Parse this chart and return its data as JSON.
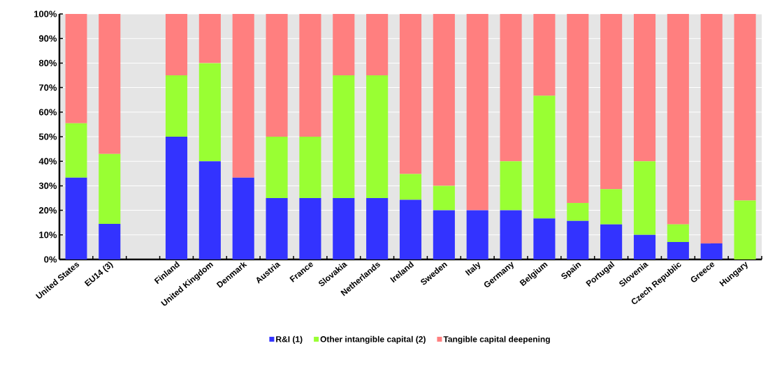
{
  "chart_data": {
    "type": "bar",
    "stacked": true,
    "categories": [
      "United States",
      "EU14 (3)",
      null,
      "Finland",
      "United Kingdom",
      "Denmark",
      "Austria",
      "France",
      "Slovakia",
      "Netherlands",
      "Ireland",
      "Sweden",
      "Italy",
      "Germany",
      "Belgium",
      "Spain",
      "Portugal",
      "Slovenia",
      "Czech Republic",
      "Greece",
      "Hungary"
    ],
    "series": [
      {
        "name": "R&I (1)",
        "color": "#3333ff",
        "values": [
          33.3,
          14.5,
          null,
          50,
          40,
          33.3,
          25,
          25,
          25,
          25,
          24.3,
          20,
          20,
          20,
          16.7,
          15.7,
          14.3,
          10,
          7.1,
          6.5,
          0
        ]
      },
      {
        "name": "Other intangible capital (2)",
        "color": "#99ff33",
        "values": [
          22.2,
          28.5,
          null,
          25,
          40,
          0,
          25,
          25,
          50,
          50,
          10.5,
          10,
          0,
          20,
          50,
          7.3,
          14.3,
          30,
          7.2,
          0,
          24
        ]
      },
      {
        "name": "Tangible capital deepening",
        "color": "#ff7f7f",
        "values": [
          44.5,
          57,
          null,
          25,
          20,
          66.7,
          50,
          50,
          25,
          25,
          65.2,
          70,
          80,
          60,
          33.3,
          77,
          71.4,
          60,
          85.7,
          93.5,
          76
        ]
      }
    ],
    "ylim": [
      0,
      100
    ],
    "yticks": [
      {
        "value": 0,
        "label": "0%"
      },
      {
        "value": 10,
        "label": "10%"
      },
      {
        "value": 20,
        "label": "20%"
      },
      {
        "value": 30,
        "label": "30%"
      },
      {
        "value": 40,
        "label": "40%"
      },
      {
        "value": 50,
        "label": "50%"
      },
      {
        "value": 60,
        "label": "60%"
      },
      {
        "value": 70,
        "label": "70%"
      },
      {
        "value": 80,
        "label": "80%"
      },
      {
        "value": 90,
        "label": "90%"
      },
      {
        "value": 100,
        "label": "100%"
      }
    ],
    "grid": "y",
    "legend": "bottom"
  }
}
